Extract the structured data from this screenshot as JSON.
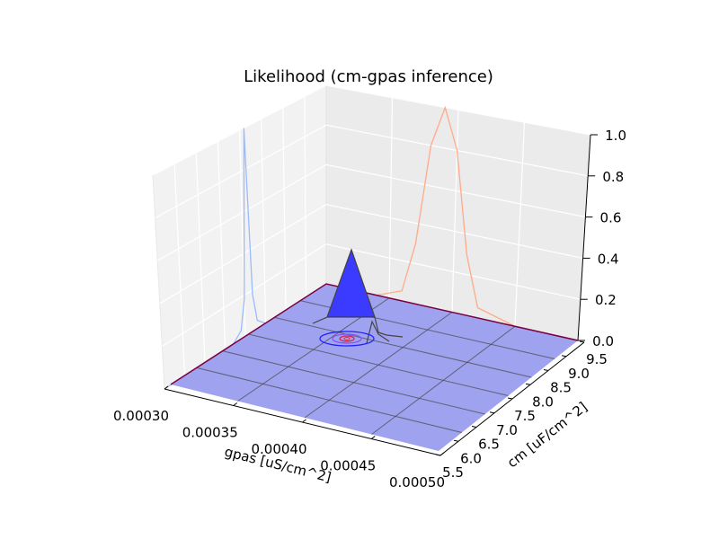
{
  "chart_data": {
    "type": "surface3d",
    "title": "Likelihood (cm-gpas inference)",
    "xlabel": "gpas [uS/cm^2]",
    "ylabel": "cm [uF/cm^2]",
    "zlabel": "",
    "xlim": [
      0.0003,
      0.0005
    ],
    "ylim": [
      5.5,
      9.5
    ],
    "zlim": [
      0.0,
      1.0
    ],
    "x_ticks": [
      "0.00030",
      "0.00035",
      "0.00040",
      "0.00045",
      "0.00050"
    ],
    "y_ticks": [
      "5.5",
      "6.0",
      "6.5",
      "7.0",
      "7.5",
      "8.0",
      "8.5",
      "9.0",
      "9.5"
    ],
    "z_ticks": [
      "0.0",
      "0.2",
      "0.4",
      "0.6",
      "0.8",
      "1.0"
    ],
    "grid": true,
    "surface": {
      "color": "#0000ff",
      "peak": {
        "x": 0.00039,
        "y": 7.6,
        "z": 0.6
      },
      "description": "Likelihood surface sharply peaked near gpas≈0.00039, cm≈7.6; near zero elsewhere"
    },
    "projections": [
      {
        "name": "marginal-cm",
        "plane": "x-min wall",
        "color": "#99bbff",
        "points": [
          [
            5.5,
            0
          ],
          [
            7.2,
            0
          ],
          [
            7.4,
            0.04
          ],
          [
            7.5,
            0.18
          ],
          [
            7.6,
            1.0
          ],
          [
            7.7,
            0.18
          ],
          [
            7.8,
            0.04
          ],
          [
            8.0,
            0
          ],
          [
            9.5,
            0
          ]
        ]
      },
      {
        "name": "marginal-gpas",
        "plane": "y-max wall",
        "color": "#ffaa88",
        "points": [
          [
            0.0003,
            0
          ],
          [
            0.00034,
            0
          ],
          [
            0.00036,
            0.05
          ],
          [
            0.00037,
            0.3
          ],
          [
            0.00038,
            0.8
          ],
          [
            0.00039,
            1.0
          ],
          [
            0.0004,
            0.8
          ],
          [
            0.00041,
            0.3
          ],
          [
            0.00042,
            0.05
          ],
          [
            0.00045,
            0
          ],
          [
            0.0005,
            0
          ]
        ]
      }
    ],
    "contour_center": {
      "x": 0.00039,
      "y": 7.6
    }
  }
}
